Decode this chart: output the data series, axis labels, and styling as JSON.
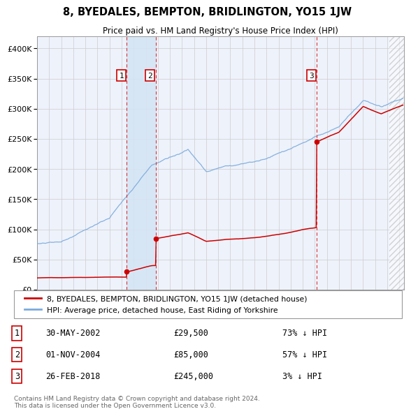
{
  "title": "8, BYEDALES, BEMPTON, BRIDLINGTON, YO15 1JW",
  "subtitle": "Price paid vs. HM Land Registry's House Price Index (HPI)",
  "ylim": [
    0,
    420000
  ],
  "yticks": [
    0,
    50000,
    100000,
    150000,
    200000,
    250000,
    300000,
    350000,
    400000
  ],
  "xlim_start": 1995.0,
  "xlim_end": 2025.4,
  "hpi_color": "#7aaadd",
  "property_color": "#cc0000",
  "sale_dates": [
    2002.41,
    2004.84,
    2018.15
  ],
  "sale_prices": [
    29500,
    85000,
    245000
  ],
  "sale_labels": [
    "1",
    "2",
    "3"
  ],
  "shaded_region": [
    2002.41,
    2004.84
  ],
  "legend_property": "8, BYEDALES, BEMPTON, BRIDLINGTON, YO15 1JW (detached house)",
  "legend_hpi": "HPI: Average price, detached house, East Riding of Yorkshire",
  "table_rows": [
    [
      "1",
      "30-MAY-2002",
      "£29,500",
      "73% ↓ HPI"
    ],
    [
      "2",
      "01-NOV-2004",
      "£85,000",
      "57% ↓ HPI"
    ],
    [
      "3",
      "26-FEB-2018",
      "£245,000",
      "3% ↓ HPI"
    ]
  ],
  "footer_text": "Contains HM Land Registry data © Crown copyright and database right 2024.\nThis data is licensed under the Open Government Licence v3.0.",
  "background_color": "#ffffff",
  "plot_bg_color": "#eef2fb",
  "grid_color": "#cccccc"
}
